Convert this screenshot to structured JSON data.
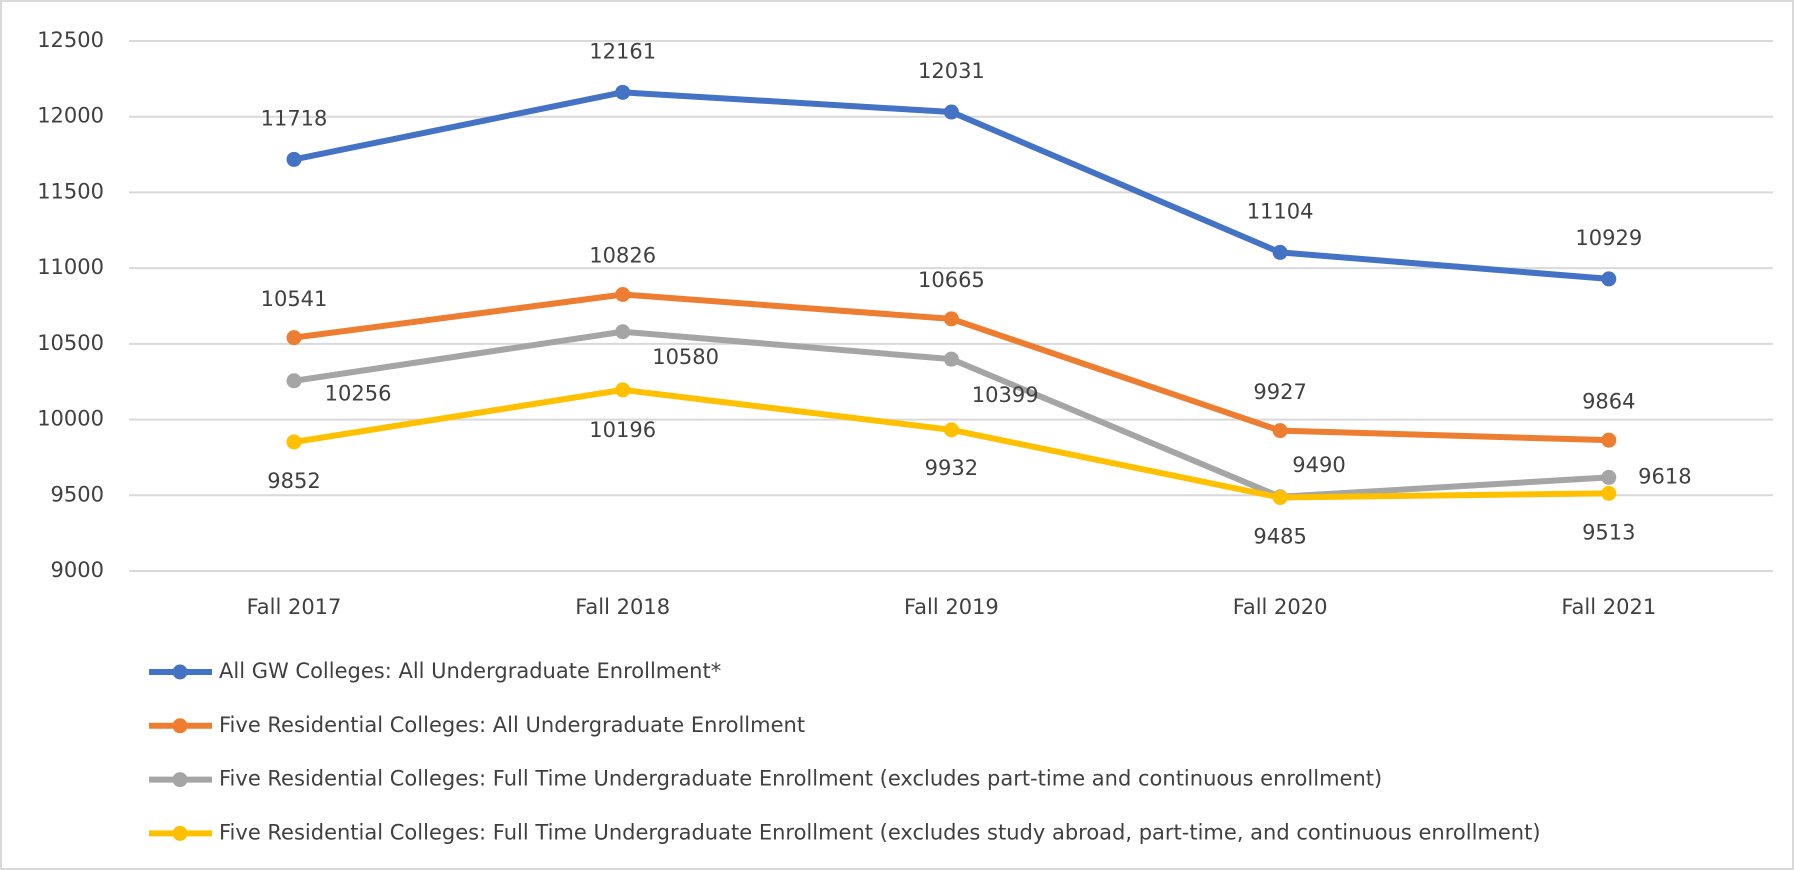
{
  "chart_data": {
    "type": "line",
    "categories": [
      "Fall 2017",
      "Fall 2018",
      "Fall 2019",
      "Fall 2020",
      "Fall 2021"
    ],
    "series": [
      {
        "name": "All GW Colleges: All Undergraduate Enrollment*",
        "color": "#4472c4",
        "values": [
          11718,
          12161,
          12031,
          11104,
          10929
        ]
      },
      {
        "name": "Five Residential Colleges: All Undergraduate Enrollment",
        "color": "#ed7d31",
        "values": [
          10541,
          10826,
          10665,
          9927,
          9864
        ]
      },
      {
        "name": "Five Residential Colleges: Full Time Undergraduate Enrollment (excludes part-time and continuous enrollment)",
        "color": "#a5a5a5",
        "values": [
          10256,
          10580,
          10399,
          9490,
          9618
        ]
      },
      {
        "name": "Five Residential Colleges: Full Time Undergraduate Enrollment (excludes study abroad, part-time, and continuous enrollment)",
        "color": "#ffc000",
        "values": [
          9852,
          10196,
          9932,
          9485,
          9513
        ]
      }
    ],
    "ylim": [
      9000,
      12500
    ],
    "yticks": [
      9000,
      9500,
      10000,
      10500,
      11000,
      11500,
      12000,
      12500
    ],
    "grid": true,
    "legend": "bottom"
  }
}
